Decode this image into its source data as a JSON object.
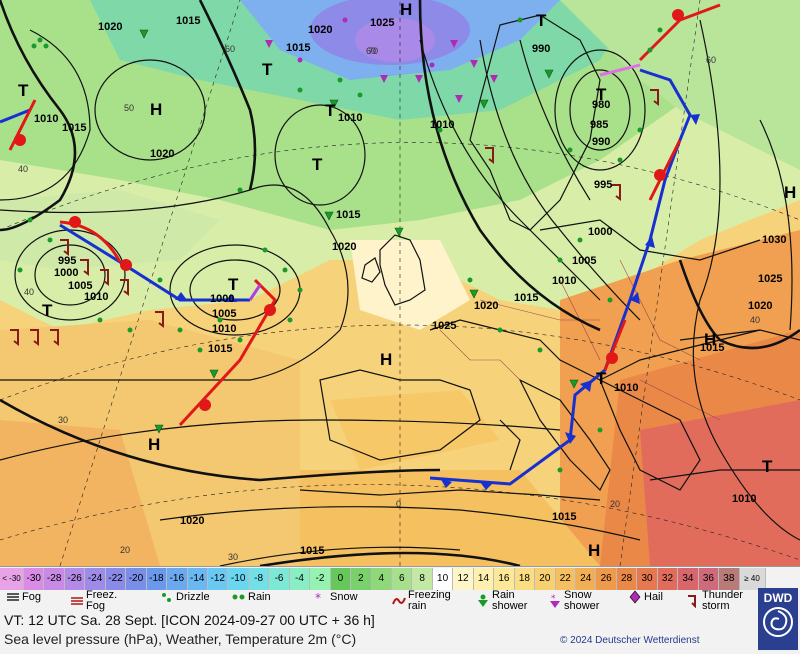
{
  "map": {
    "pressure_centers": [
      {
        "type": "H"
      },
      {
        "type": "H"
      },
      {
        "type": "H"
      },
      {
        "type": "H"
      },
      {
        "type": "H"
      },
      {
        "type": "H"
      },
      {
        "type": "H"
      },
      {
        "type": "T"
      },
      {
        "type": "T"
      },
      {
        "type": "T"
      },
      {
        "type": "T"
      },
      {
        "type": "T"
      },
      {
        "type": "T"
      },
      {
        "type": "T"
      },
      {
        "type": "T"
      },
      {
        "type": "T"
      },
      {
        "type": "T"
      }
    ],
    "isobar_labels": [
      "1020",
      "1015",
      "1025",
      "1020",
      "1015",
      "990",
      "1010",
      "1015",
      "1020",
      "1010",
      "1010",
      "980",
      "985",
      "990",
      "995",
      "1020",
      "1015",
      "1000",
      "1005",
      "1010",
      "1000",
      "1005",
      "995",
      "1010",
      "1005",
      "1010",
      "1015",
      "1025",
      "1020",
      "1015",
      "1000",
      "1030",
      "1025",
      "1020",
      "1015",
      "1010",
      "1010",
      "1015",
      "1020",
      "1015"
    ],
    "temperature_labels": [
      "60",
      "60",
      "50",
      "40",
      "40",
      "30",
      "20",
      "60",
      "40",
      "20",
      "70",
      "0",
      "30"
    ]
  },
  "colorbar": {
    "values": [
      "< -30",
      "-30",
      "-28",
      "-26",
      "-24",
      "-22",
      "-20",
      "-18",
      "-16",
      "-14",
      "-12",
      "-10",
      "-8",
      "-6",
      "-4",
      "-2",
      "0",
      "2",
      "4",
      "6",
      "8",
      "10",
      "12",
      "14",
      "16",
      "18",
      "20",
      "22",
      "24",
      "26",
      "28",
      "30",
      "32",
      "34",
      "36",
      "38",
      "≥ 40"
    ],
    "colors": [
      "#e7a2e8",
      "#d98be6",
      "#c98ae6",
      "#b48ae8",
      "#9e8ae8",
      "#8a8ae8",
      "#7a8ee9",
      "#6a98ec",
      "#6aa8ef",
      "#6ab8f2",
      "#6ac8f3",
      "#6ad6f0",
      "#72e0e6",
      "#7ee8d6",
      "#8aeec4",
      "#96f2b0",
      "#66c75a",
      "#7ad06a",
      "#8ed87a",
      "#a6e08c",
      "#c2e8a4",
      "#ffffff",
      "#fff6c8",
      "#fff0b0",
      "#fde89a",
      "#fbde84",
      "#f8d070",
      "#f6c060",
      "#f2ae52",
      "#ee9a4a",
      "#ea8848",
      "#e67850",
      "#e26c5c",
      "#d9666c",
      "#cf6a7a",
      "#b97a7a",
      "#d9d9d9"
    ]
  },
  "symbols": [
    {
      "label": "Fog",
      "icon": "fog-icon"
    },
    {
      "label": "Freez. Fog",
      "icon": "freezing-fog-icon"
    },
    {
      "label": "Drizzle",
      "icon": "drizzle-icon"
    },
    {
      "label": "Rain",
      "icon": "rain-icon"
    },
    {
      "label": "Snow",
      "icon": "snow-icon"
    },
    {
      "label": "Freezing rain",
      "icon": "freezing-rain-icon"
    },
    {
      "label": "Rain shower",
      "icon": "rain-shower-icon"
    },
    {
      "label": "Snow shower",
      "icon": "snow-shower-icon"
    },
    {
      "label": "Hail",
      "icon": "hail-icon"
    },
    {
      "label": "Thunder storm",
      "icon": "thunderstorm-icon"
    }
  ],
  "info": {
    "valid_time": "VT: 12 UTC Sa.  28 Sept. [ICON 2024-09-27  00 UTC + 36 h]",
    "description": "Sea level pressure (hPa), Weather, Temperature 2m (°C)",
    "copyright": "© 2024 Deutscher Wetterdienst",
    "logo_text": "DWD"
  }
}
